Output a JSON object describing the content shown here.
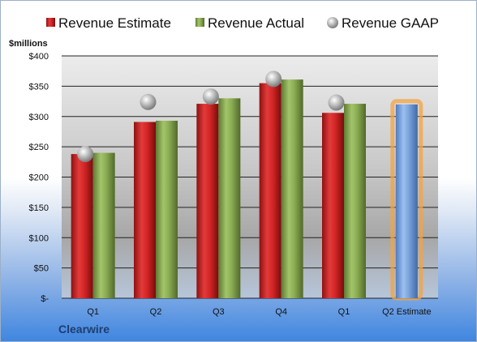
{
  "company": "Clearwire",
  "chart_data": {
    "type": "bar",
    "title": "",
    "xlabel": "",
    "ylabel": "",
    "unit_label": "$millions",
    "categories": [
      "Q1",
      "Q2",
      "Q3",
      "Q4",
      "Q1",
      "Q2 Estimate"
    ],
    "ylim": [
      0,
      400
    ],
    "yticks": [
      0,
      50,
      100,
      150,
      200,
      250,
      300,
      350,
      400
    ],
    "ytick_labels": [
      "$-",
      "$50",
      "$100",
      "$150",
      "$200",
      "$250",
      "$300",
      "$350",
      "$400"
    ],
    "grid": true,
    "legend_position": "top",
    "series": [
      {
        "name": "Revenue Estimate",
        "type": "bar",
        "color": "#d42a2a",
        "values": [
          238,
          291,
          321,
          355,
          306,
          null
        ]
      },
      {
        "name": "Revenue Actual",
        "type": "bar",
        "color": "#8aac52",
        "values": [
          240,
          293,
          330,
          361,
          321,
          null
        ]
      },
      {
        "name": "Revenue GAAP",
        "type": "marker",
        "color": "#b5b5b5",
        "values": [
          238,
          324,
          333,
          362,
          323,
          null
        ]
      },
      {
        "name": "Q2 Estimate",
        "type": "bar",
        "color": "#7aa3db",
        "highlight": "#f4a340",
        "values": [
          null,
          null,
          null,
          null,
          null,
          320
        ]
      }
    ]
  }
}
